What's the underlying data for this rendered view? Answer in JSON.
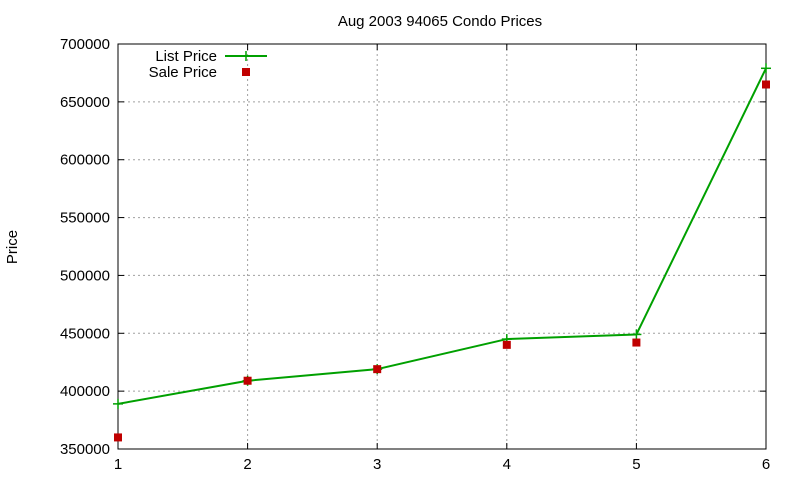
{
  "chart_data": {
    "type": "line",
    "title": "Aug 2003 94065 Condo Prices",
    "xlabel": "",
    "ylabel": "Price",
    "xlim": [
      1,
      6
    ],
    "ylim": [
      350000,
      700000
    ],
    "xticks": [
      1,
      2,
      3,
      4,
      5,
      6
    ],
    "yticks": [
      350000,
      400000,
      450000,
      500000,
      550000,
      600000,
      650000,
      700000
    ],
    "grid": true,
    "legend_position": "top-left",
    "series": [
      {
        "name": "List Price",
        "style": "line-with-plus-markers",
        "color": "#00a000",
        "x": [
          1,
          2,
          3,
          4,
          5,
          6
        ],
        "values": [
          389000,
          409000,
          419000,
          445000,
          449000,
          679000
        ]
      },
      {
        "name": "Sale Price",
        "style": "square-points",
        "color": "#c00000",
        "x": [
          1,
          2,
          3,
          4,
          5,
          6
        ],
        "values": [
          360000,
          409000,
          419000,
          440000,
          442000,
          665000
        ]
      }
    ]
  }
}
